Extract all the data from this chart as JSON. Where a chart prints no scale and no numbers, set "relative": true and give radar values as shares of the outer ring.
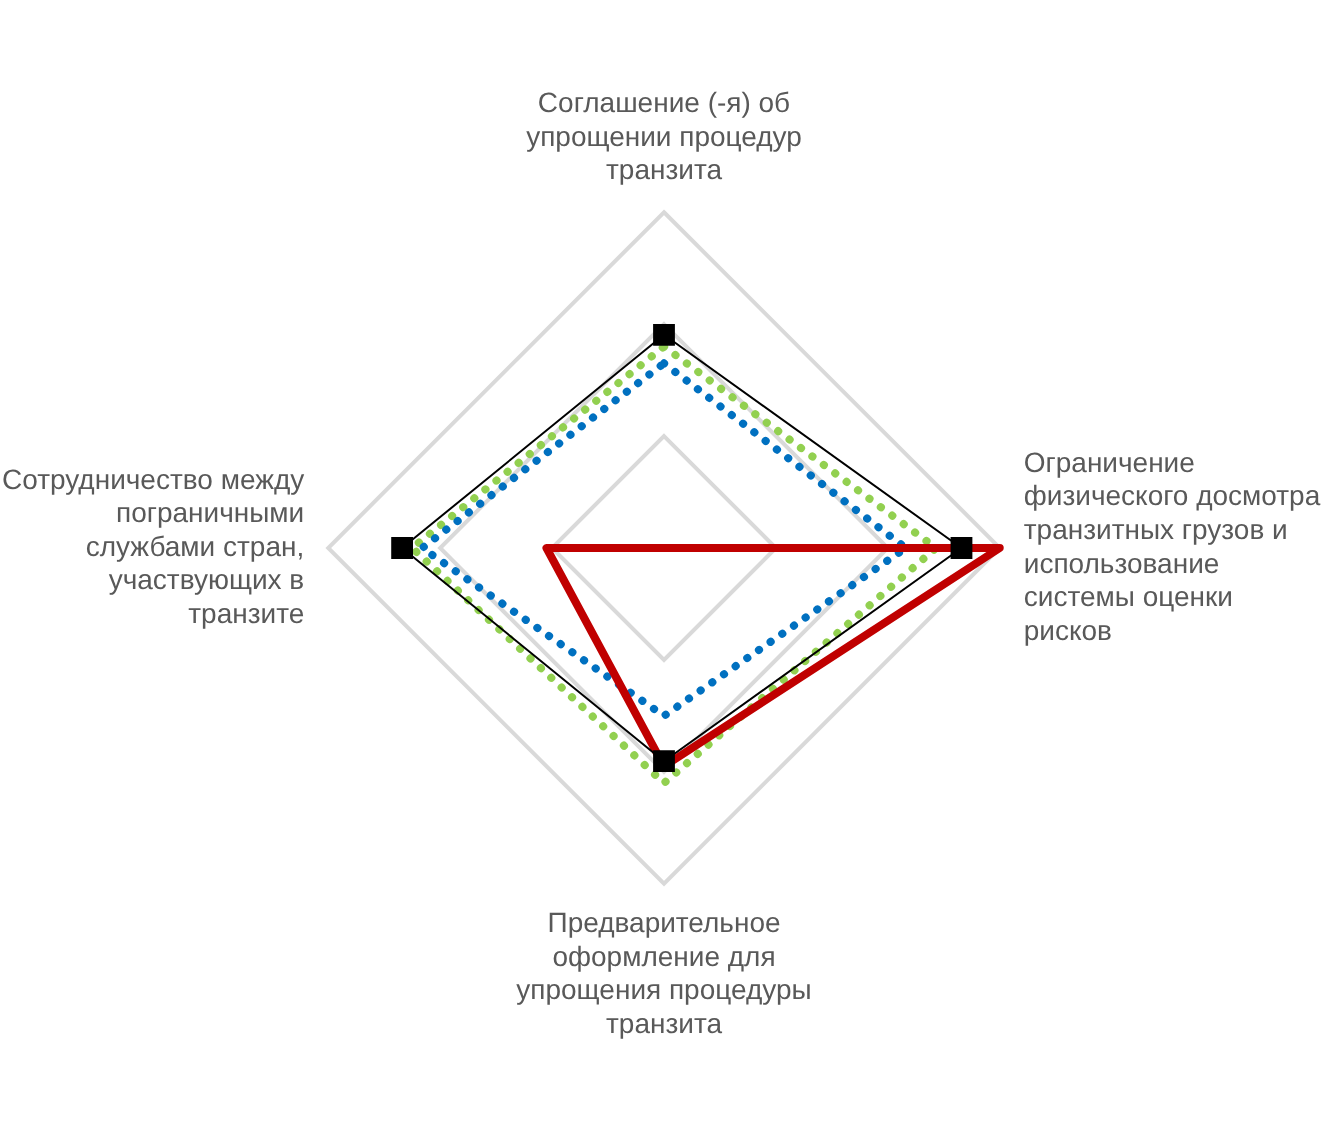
{
  "chart_data": {
    "type": "radar",
    "relative": true,
    "grid": true,
    "legend": false,
    "categories": [
      "Соглашение (-я) об упрощении процедур транзита",
      "Ограничение физического досмотра транзитных грузов и использование системы оценки рисков",
      "Предварительное оформление для упрощения процедуры транзита",
      "Сотрудничество между пограничными службами стран, участвующих в транзите"
    ],
    "series": [
      {
        "color": "#92d050",
        "values": [
          0.6,
          0.81,
          0.7,
          0.75
        ],
        "line_style": "dotted",
        "marker": "none"
      },
      {
        "color": "#0070c0",
        "values": [
          0.55,
          0.72,
          0.5,
          0.72
        ],
        "line_style": "dotted",
        "marker": "none"
      },
      {
        "color": "#c00000",
        "values": [
          0,
          1,
          0.65,
          0.35
        ],
        "line_style": "solid",
        "marker": "none"
      },
      {
        "color": "#000000",
        "values": [
          0.635,
          0.886,
          0.635,
          0.78
        ],
        "line_style": "solid",
        "marker": "square"
      }
    ]
  }
}
